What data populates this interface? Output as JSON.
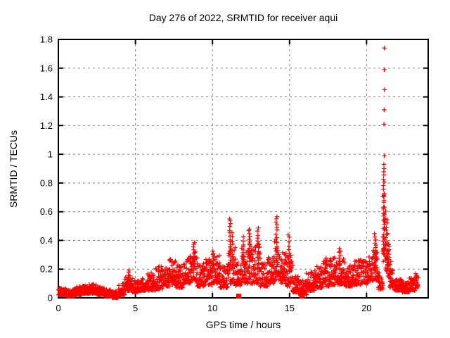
{
  "window": {
    "background": "#ffffff"
  },
  "chart": {
    "title": "Day 276 of 2022, SRMTID for receiver aqui",
    "xlabel": "GPS time / hours",
    "ylabel": "SRMTID / TECUs"
  },
  "chart_data": {
    "type": "scatter",
    "title": "Day 276 of 2022, SRMTID for receiver aqui",
    "xlabel": "GPS time / hours",
    "ylabel": "SRMTID / TECUs",
    "xlim": [
      0,
      24
    ],
    "ylim": [
      0,
      1.8
    ],
    "xticks": {
      "values": [
        0,
        5,
        10,
        15,
        20
      ],
      "labels": [
        "0",
        "5",
        "10",
        "15",
        "20"
      ]
    },
    "yticks": {
      "values": [
        0,
        0.2,
        0.4,
        0.6,
        0.8,
        1.0,
        1.2,
        1.4,
        1.6,
        1.8
      ],
      "labels": [
        "0",
        "0.2",
        "0.4",
        "0.6",
        "0.8",
        "1",
        "1.2",
        "1.4",
        "1.6",
        "1.8"
      ]
    },
    "grid": true,
    "legend": "none",
    "marker": "plus",
    "marker_color": "#ff0000",
    "grid_color": "#7f7f7f",
    "border_color": "#000000",
    "series": [
      {
        "name": "srmtid_scatter_band",
        "style": "band",
        "comment": "dense + markers; segments are [x_start_h, x_end_h, y_low_TECU, y_high_TECU, n_points]",
        "segments": [
          [
            0.0,
            0.5,
            0.02,
            0.07,
            60
          ],
          [
            0.5,
            1.0,
            0.01,
            0.06,
            60
          ],
          [
            1.0,
            1.5,
            0.02,
            0.08,
            60
          ],
          [
            1.5,
            2.0,
            0.03,
            0.09,
            60
          ],
          [
            2.0,
            2.5,
            0.03,
            0.1,
            60
          ],
          [
            2.5,
            3.0,
            0.02,
            0.08,
            60
          ],
          [
            3.0,
            3.5,
            0.01,
            0.06,
            60
          ],
          [
            3.5,
            3.9,
            0.0,
            0.05,
            48
          ],
          [
            3.9,
            4.3,
            0.02,
            0.1,
            44
          ],
          [
            4.3,
            4.8,
            0.05,
            0.16,
            48
          ],
          [
            4.8,
            5.3,
            0.04,
            0.12,
            48
          ],
          [
            5.3,
            5.8,
            0.05,
            0.14,
            48
          ],
          [
            5.8,
            6.3,
            0.05,
            0.18,
            48
          ],
          [
            6.3,
            6.8,
            0.06,
            0.22,
            48
          ],
          [
            6.8,
            7.2,
            0.08,
            0.22,
            40
          ],
          [
            7.2,
            7.6,
            0.09,
            0.27,
            40
          ],
          [
            7.6,
            8.1,
            0.07,
            0.23,
            48
          ],
          [
            8.1,
            8.6,
            0.1,
            0.3,
            48
          ],
          [
            8.6,
            9.0,
            0.12,
            0.34,
            40
          ],
          [
            9.0,
            9.5,
            0.08,
            0.24,
            48
          ],
          [
            9.5,
            10.0,
            0.09,
            0.27,
            48
          ],
          [
            10.0,
            10.5,
            0.1,
            0.3,
            48
          ],
          [
            10.5,
            11.0,
            0.07,
            0.22,
            48
          ],
          [
            11.0,
            11.5,
            0.1,
            0.35,
            48
          ],
          [
            11.5,
            11.9,
            0.08,
            0.28,
            40
          ],
          [
            11.9,
            12.3,
            0.1,
            0.35,
            40
          ],
          [
            12.3,
            12.7,
            0.1,
            0.38,
            40
          ],
          [
            12.7,
            13.1,
            0.1,
            0.38,
            40
          ],
          [
            13.1,
            13.6,
            0.08,
            0.25,
            48
          ],
          [
            13.6,
            14.0,
            0.1,
            0.3,
            40
          ],
          [
            14.0,
            14.4,
            0.12,
            0.4,
            40
          ],
          [
            14.4,
            14.8,
            0.1,
            0.32,
            40
          ],
          [
            14.8,
            15.2,
            0.08,
            0.3,
            40
          ],
          [
            15.2,
            15.6,
            0.04,
            0.16,
            40
          ],
          [
            15.6,
            16.1,
            0.02,
            0.12,
            48
          ],
          [
            16.1,
            16.6,
            0.05,
            0.18,
            48
          ],
          [
            16.6,
            17.1,
            0.07,
            0.22,
            48
          ],
          [
            17.1,
            17.6,
            0.08,
            0.26,
            48
          ],
          [
            17.6,
            18.1,
            0.09,
            0.28,
            48
          ],
          [
            18.1,
            18.6,
            0.09,
            0.28,
            48
          ],
          [
            18.6,
            19.1,
            0.08,
            0.24,
            48
          ],
          [
            19.1,
            19.6,
            0.09,
            0.26,
            48
          ],
          [
            19.6,
            20.1,
            0.1,
            0.28,
            48
          ],
          [
            20.1,
            20.45,
            0.12,
            0.3,
            34
          ],
          [
            20.45,
            20.75,
            0.12,
            0.38,
            30
          ],
          [
            20.75,
            21.05,
            0.06,
            0.18,
            30
          ],
          [
            21.05,
            21.25,
            0.25,
            0.72,
            26
          ],
          [
            21.25,
            21.5,
            0.14,
            0.45,
            22
          ],
          [
            21.5,
            21.8,
            0.07,
            0.2,
            26
          ],
          [
            21.8,
            22.3,
            0.05,
            0.13,
            55
          ],
          [
            22.3,
            22.8,
            0.04,
            0.11,
            55
          ],
          [
            22.8,
            23.15,
            0.05,
            0.14,
            38
          ],
          [
            23.15,
            23.35,
            0.07,
            0.17,
            20
          ]
        ]
      },
      {
        "name": "srmtid_spike_columns",
        "style": "column",
        "comment": "vertical spike clusters; columns are [x_h, y_from, y_to, n_points]",
        "columns": [
          [
            4.6,
            0.1,
            0.19,
            7
          ],
          [
            8.8,
            0.22,
            0.38,
            12
          ],
          [
            10.05,
            0.22,
            0.33,
            8
          ],
          [
            11.15,
            0.25,
            0.55,
            16
          ],
          [
            11.3,
            0.2,
            0.45,
            10
          ],
          [
            12.0,
            0.22,
            0.42,
            10
          ],
          [
            12.4,
            0.25,
            0.48,
            13
          ],
          [
            12.95,
            0.22,
            0.48,
            13
          ],
          [
            14.15,
            0.28,
            0.57,
            15
          ],
          [
            14.95,
            0.22,
            0.44,
            10
          ],
          [
            17.35,
            0.18,
            0.28,
            7
          ],
          [
            18.25,
            0.2,
            0.35,
            9
          ],
          [
            20.55,
            0.2,
            0.45,
            11
          ],
          [
            21.12,
            0.3,
            0.9,
            26
          ],
          [
            21.3,
            0.25,
            0.55,
            12
          ],
          [
            21.42,
            0.15,
            0.38,
            10
          ],
          [
            21.55,
            0.1,
            0.25,
            8
          ]
        ]
      },
      {
        "name": "srmtid_peak_points",
        "style": "points",
        "comment": "isolated high + markers of the 21h spike",
        "points": [
          [
            21.15,
            1.74
          ],
          [
            21.15,
            1.59
          ],
          [
            21.16,
            1.45
          ],
          [
            21.14,
            1.31
          ],
          [
            21.13,
            1.21
          ],
          [
            21.15,
            0.99
          ],
          [
            21.12,
            0.93
          ]
        ]
      },
      {
        "name": "axis_event_squares",
        "style": "squares",
        "comment": "filled red squares sitting on the x-axis",
        "points": [
          [
            11.7,
            0.012
          ],
          [
            15.8,
            0.012
          ]
        ]
      }
    ]
  }
}
